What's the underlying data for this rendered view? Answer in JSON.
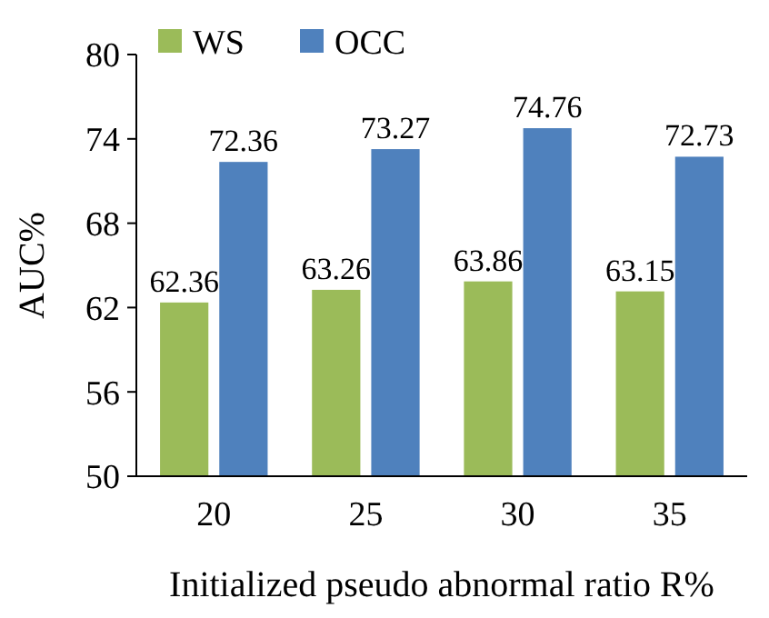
{
  "chart_data": {
    "type": "bar",
    "xlabel": "Initialized pseudo abnormal ratio R%",
    "ylabel": "AUC%",
    "categories": [
      "20",
      "25",
      "30",
      "35"
    ],
    "series": [
      {
        "name": "WS",
        "color": "#9bbb59",
        "values": [
          62.36,
          63.26,
          63.86,
          63.15
        ]
      },
      {
        "name": "OCC",
        "color": "#4f81bd",
        "values": [
          72.36,
          73.27,
          74.76,
          72.73
        ]
      }
    ],
    "ylim": [
      50,
      80
    ],
    "yticks": [
      50,
      56,
      62,
      68,
      74,
      80
    ],
    "data_labels": true,
    "legend": "top left",
    "grid": false
  }
}
